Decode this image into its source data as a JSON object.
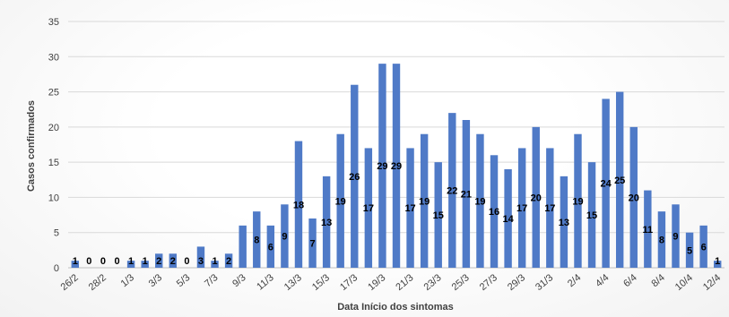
{
  "chart_data": {
    "type": "bar",
    "title": "",
    "xlabel": "Data Início dos sintomas",
    "ylabel": "Casos confirmados",
    "ylim": [
      0,
      35
    ],
    "yticks": [
      0,
      5,
      10,
      15,
      20,
      25,
      30,
      35
    ],
    "grid": true,
    "legend": "none",
    "bar_color": "#4f7ac7",
    "categories": [
      "26/2",
      "27/2",
      "28/2",
      "29/2",
      "1/3",
      "2/3",
      "3/3",
      "4/3",
      "5/3",
      "6/3",
      "7/3",
      "8/3",
      "9/3",
      "10/3",
      "11/3",
      "12/3",
      "13/3",
      "14/3",
      "15/3",
      "16/3",
      "17/3",
      "18/3",
      "19/3",
      "20/3",
      "21/3",
      "22/3",
      "23/3",
      "24/3",
      "25/3",
      "26/3",
      "27/3",
      "28/3",
      "29/3",
      "30/3",
      "31/3",
      "1/4",
      "2/4",
      "3/4",
      "4/4",
      "5/4",
      "6/4",
      "7/4",
      "8/4",
      "9/4",
      "10/4",
      "11/4",
      "12/4"
    ],
    "x_tick_labels": [
      "26/2",
      "",
      "28/2",
      "",
      "1/3",
      "",
      "3/3",
      "",
      "5/3",
      "",
      "7/3",
      "",
      "9/3",
      "",
      "11/3",
      "",
      "13/3",
      "",
      "15/3",
      "",
      "17/3",
      "",
      "19/3",
      "",
      "21/3",
      "",
      "23/3",
      "",
      "25/3",
      "",
      "27/3",
      "",
      "29/3",
      "",
      "31/3",
      "",
      "2/4",
      "",
      "4/4",
      "",
      "6/4",
      "",
      "8/4",
      "",
      "10/4",
      "",
      "12/4"
    ],
    "values": [
      1,
      0,
      0,
      0,
      1,
      1,
      2,
      2,
      0,
      3,
      1,
      2,
      6,
      8,
      6,
      9,
      18,
      7,
      13,
      19,
      26,
      17,
      29,
      29,
      17,
      19,
      15,
      22,
      21,
      19,
      16,
      14,
      17,
      20,
      17,
      13,
      19,
      15,
      24,
      25,
      20,
      11,
      8,
      9,
      5,
      6,
      1
    ],
    "data_labels": [
      "1",
      "0",
      "0",
      "0",
      "1",
      "1",
      "2",
      "2",
      "0",
      "3",
      "1",
      "2",
      "",
      "8",
      "6",
      "9",
      "18",
      "7",
      "13",
      "19",
      "26",
      "17",
      "29",
      "29",
      "17",
      "19",
      "15",
      "22",
      "21",
      "19",
      "16",
      "14",
      "17",
      "20",
      "17",
      "13",
      "19",
      "15",
      "24",
      "25",
      "20",
      "11",
      "8",
      "9",
      "5",
      "6",
      "1"
    ]
  }
}
